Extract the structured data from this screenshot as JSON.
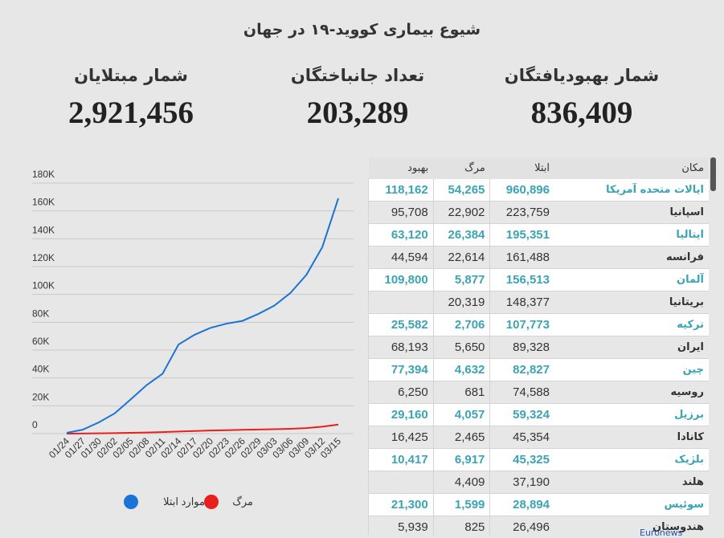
{
  "header": {
    "title": "شیوع بیماری کووید-۱۹ در جهان"
  },
  "stats": [
    {
      "label": "شمار بهبودیافتگان",
      "value": "836,409"
    },
    {
      "label": "تعداد جانباختگان",
      "value": "203,289"
    },
    {
      "label": "شمار مبتلایان",
      "value": "2,921,456"
    }
  ],
  "chart_data": {
    "type": "line",
    "categories": [
      "01/24",
      "01/27",
      "01/30",
      "02/02",
      "02/05",
      "02/08",
      "02/11",
      "02/14",
      "02/17",
      "02/20",
      "02/23",
      "02/26",
      "02/29",
      "03/03",
      "03/06",
      "03/09",
      "03/12",
      "03/15"
    ],
    "series": [
      {
        "name": "موارد ابتلا",
        "color": "#1a73d6",
        "values": [
          600,
          2800,
          8000,
          14500,
          24500,
          34800,
          43000,
          64000,
          71000,
          76000,
          79000,
          81000,
          86000,
          92000,
          101000,
          114000,
          134000,
          169000
        ]
      },
      {
        "name": "مرگ",
        "color": "#e8201c",
        "values": [
          26,
          82,
          213,
          362,
          565,
          813,
          1113,
          1523,
          1873,
          2247,
          2469,
          2770,
          2941,
          3202,
          3491,
          3988,
          4983,
          6500
        ]
      }
    ],
    "ylim": [
      0,
      180000
    ],
    "yticks": [
      {
        "value": 0,
        "label": "0"
      },
      {
        "value": 20000,
        "label": "20K"
      },
      {
        "value": 40000,
        "label": "40K"
      },
      {
        "value": 60000,
        "label": "60K"
      },
      {
        "value": 80000,
        "label": "80K"
      },
      {
        "value": 100000,
        "label": "100K"
      },
      {
        "value": 120000,
        "label": "120K"
      },
      {
        "value": 140000,
        "label": "140K"
      },
      {
        "value": 160000,
        "label": "160K"
      },
      {
        "value": 180000,
        "label": "180K"
      }
    ],
    "grid": true
  },
  "table": {
    "header": [
      "مکان",
      "ابتلا",
      "مرگ",
      "بهبود"
    ],
    "rows": [
      [
        "ایالات متحده آمریکا",
        "960,896",
        "54,265",
        "118,162"
      ],
      [
        "اسپانیا",
        "223,759",
        "22,902",
        "95,708"
      ],
      [
        "ایتالیا",
        "195,351",
        "26,384",
        "63,120"
      ],
      [
        "فرانسه",
        "161,488",
        "22,614",
        "44,594"
      ],
      [
        "آلمان",
        "156,513",
        "5,877",
        "109,800"
      ],
      [
        "بریتانیا",
        "148,377",
        "20,319",
        null
      ],
      [
        "ترکیه",
        "107,773",
        "2,706",
        "25,582"
      ],
      [
        "ایران",
        "89,328",
        "5,650",
        "68,193"
      ],
      [
        "چین",
        "82,827",
        "4,632",
        "77,394"
      ],
      [
        "روسیه",
        "74,588",
        "681",
        "6,250"
      ],
      [
        "برزیل",
        "59,324",
        "4,057",
        "29,160"
      ],
      [
        "کانادا",
        "45,354",
        "2,465",
        "16,425"
      ],
      [
        "بلژیک",
        "45,325",
        "6,917",
        "10,417"
      ],
      [
        "هلند",
        "37,190",
        "4,409",
        null
      ],
      [
        "سوئیس",
        "28,894",
        "1,599",
        "21,300"
      ],
      [
        "هندوستان",
        "26,496",
        "825",
        "5,939"
      ]
    ]
  },
  "footer": "Euronews"
}
